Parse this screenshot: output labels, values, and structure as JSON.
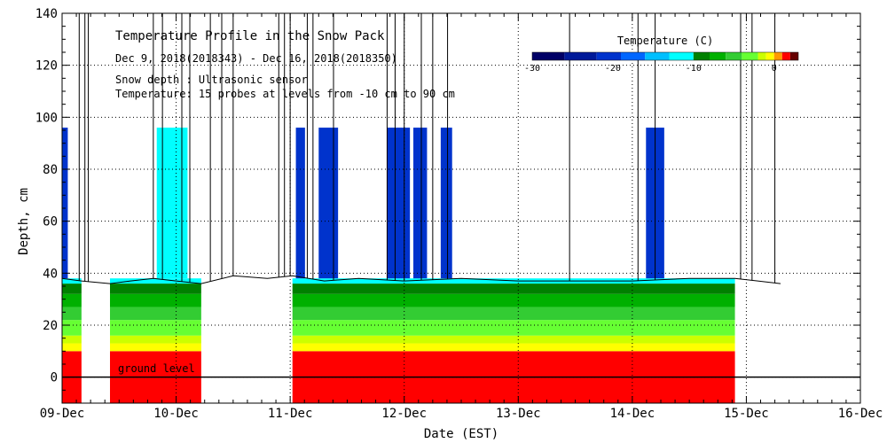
{
  "chart_data": {
    "type": "heatmap",
    "title": "Temperature Profile in the Snow Pack",
    "date_range": "Dec  9, 2018(2018343) - Dec 16, 2018(2018350)",
    "note_depth": "Snow depth : Ultrasonic sensor",
    "note_temp": "Temperature: 15 probes at levels from -10 cm to 90 cm",
    "xlabel": "Date (EST)",
    "ylabel": "Depth, cm",
    "xlim": [
      0,
      7
    ],
    "ylim": [
      -10,
      140
    ],
    "x_ticks": [
      {
        "value": 0,
        "label": "09-Dec"
      },
      {
        "value": 1,
        "label": "10-Dec"
      },
      {
        "value": 2,
        "label": "11-Dec"
      },
      {
        "value": 3,
        "label": "12-Dec"
      },
      {
        "value": 4,
        "label": "13-Dec"
      },
      {
        "value": 5,
        "label": "14-Dec"
      },
      {
        "value": 6,
        "label": "15-Dec"
      },
      {
        "value": 7,
        "label": "16-Dec"
      }
    ],
    "y_ticks": [
      {
        "value": 0,
        "label": "0"
      },
      {
        "value": 20,
        "label": "20"
      },
      {
        "value": 40,
        "label": "40"
      },
      {
        "value": 60,
        "label": "60"
      },
      {
        "value": 80,
        "label": "80"
      },
      {
        "value": 100,
        "label": "100"
      },
      {
        "value": 120,
        "label": "120"
      },
      {
        "value": 140,
        "label": "140"
      }
    ],
    "ground_level": {
      "value": 0,
      "label": "ground level"
    },
    "grid": true,
    "colorbar": {
      "title": "Temperature (C)",
      "min": -30,
      "max": 3,
      "tick_values": [
        -30,
        -20,
        -10,
        0
      ],
      "tick_labels": [
        "-30",
        "-20",
        "-10",
        "0"
      ],
      "bands": [
        {
          "from": -30,
          "to": -26,
          "color": "#000066"
        },
        {
          "from": -26,
          "to": -22,
          "color": "#001a99"
        },
        {
          "from": -22,
          "to": -19,
          "color": "#0033cc"
        },
        {
          "from": -19,
          "to": -16,
          "color": "#0066ff"
        },
        {
          "from": -16,
          "to": -13,
          "color": "#00bfff"
        },
        {
          "from": -13,
          "to": -10,
          "color": "#00ffff"
        },
        {
          "from": -10,
          "to": -8,
          "color": "#008000"
        },
        {
          "from": -8,
          "to": -6,
          "color": "#00b000"
        },
        {
          "from": -6,
          "to": -4,
          "color": "#33cc33"
        },
        {
          "from": -4,
          "to": -2,
          "color": "#66ff33"
        },
        {
          "from": -2,
          "to": -1,
          "color": "#ccff00"
        },
        {
          "from": -1,
          "to": 0,
          "color": "#ffff00"
        },
        {
          "from": 0,
          "to": 1,
          "color": "#ff9900"
        },
        {
          "from": 1,
          "to": 2,
          "color": "#ff0000"
        },
        {
          "from": 2,
          "to": 3,
          "color": "#660000"
        }
      ]
    },
    "data_segments": [
      {
        "start": 0.0,
        "end": 0.17
      },
      {
        "start": 0.42,
        "end": 1.22
      },
      {
        "start": 2.02,
        "end": 5.9
      }
    ],
    "temperature_bands": [
      {
        "from": -10,
        "to": 10,
        "color": "#ff0000",
        "label": "ground"
      },
      {
        "from": 10,
        "to": 13,
        "color": "#ffff00"
      },
      {
        "from": 13,
        "to": 16,
        "color": "#ccff00"
      },
      {
        "from": 16,
        "to": 22,
        "color": "#66ff33"
      },
      {
        "from": 22,
        "to": 27,
        "color": "#33cc33"
      },
      {
        "from": 27,
        "to": 32,
        "color": "#00b000"
      },
      {
        "from": 32,
        "to": 36,
        "color": "#008000"
      },
      {
        "from": 36,
        "to": 38,
        "color": "#00ffff"
      }
    ],
    "snow_depth_surface": [
      {
        "x": 0.0,
        "y": 38
      },
      {
        "x": 0.17,
        "y": 37
      },
      {
        "x": 0.42,
        "y": 36
      },
      {
        "x": 0.6,
        "y": 37
      },
      {
        "x": 0.8,
        "y": 38
      },
      {
        "x": 1.0,
        "y": 37
      },
      {
        "x": 1.22,
        "y": 36
      },
      {
        "x": 1.5,
        "y": 39
      },
      {
        "x": 1.8,
        "y": 38
      },
      {
        "x": 2.02,
        "y": 39
      },
      {
        "x": 2.3,
        "y": 37
      },
      {
        "x": 2.6,
        "y": 38
      },
      {
        "x": 3.0,
        "y": 37
      },
      {
        "x": 3.5,
        "y": 38
      },
      {
        "x": 4.0,
        "y": 37
      },
      {
        "x": 4.5,
        "y": 37
      },
      {
        "x": 5.0,
        "y": 37
      },
      {
        "x": 5.5,
        "y": 38
      },
      {
        "x": 5.9,
        "y": 38
      },
      {
        "x": 6.1,
        "y": 37
      },
      {
        "x": 6.3,
        "y": 36
      }
    ],
    "probe_columns": [
      {
        "x0": 0.0,
        "x1": 0.05,
        "top": 96,
        "color": "#0033cc"
      },
      {
        "x0": 0.83,
        "x1": 1.1,
        "top": 96,
        "color": "#00ffff"
      },
      {
        "x0": 2.05,
        "x1": 2.13,
        "top": 96,
        "color": "#0033cc"
      },
      {
        "x0": 2.25,
        "x1": 2.42,
        "top": 96,
        "color": "#0033cc"
      },
      {
        "x0": 2.85,
        "x1": 3.05,
        "top": 96,
        "color": "#0033cc"
      },
      {
        "x0": 3.08,
        "x1": 3.2,
        "top": 96,
        "color": "#0033cc"
      },
      {
        "x0": 3.32,
        "x1": 3.42,
        "top": 96,
        "color": "#0033cc"
      },
      {
        "x0": 5.12,
        "x1": 5.28,
        "top": 96,
        "color": "#0033cc"
      }
    ],
    "depth_spikes_x": [
      0.15,
      0.2,
      0.23,
      0.8,
      0.88,
      1.05,
      1.12,
      1.3,
      1.4,
      1.5,
      1.9,
      1.95,
      2.0,
      2.15,
      2.2,
      2.38,
      2.85,
      2.92,
      3.0,
      3.15,
      3.25,
      3.38,
      4.45,
      5.05,
      5.2,
      5.95,
      6.05,
      6.25
    ]
  }
}
